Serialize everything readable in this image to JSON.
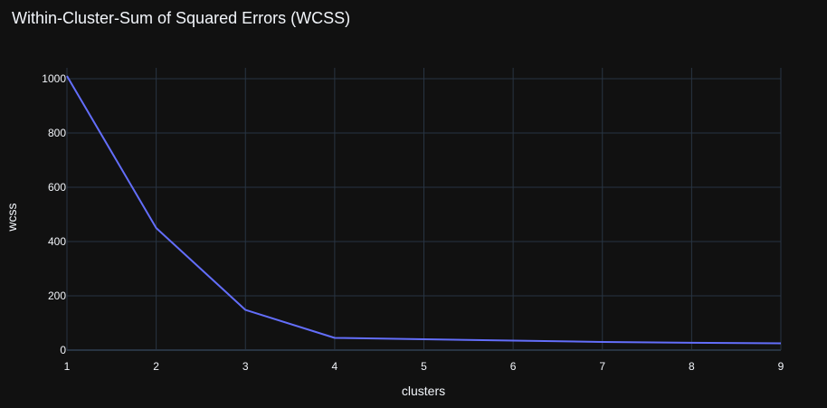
{
  "chart_data": {
    "type": "line",
    "title": "Within-Cluster-Sum of Squared Errors (WCSS)",
    "xlabel": "clusters",
    "ylabel": "wcss",
    "x": [
      1,
      2,
      3,
      4,
      5,
      6,
      7,
      8,
      9
    ],
    "series": [
      {
        "values": [
          1010,
          450,
          148,
          45,
          40,
          35,
          30,
          27,
          25
        ],
        "color": "#636efa"
      }
    ],
    "xlim": [
      1,
      9
    ],
    "ylim": [
      0,
      1040
    ],
    "xticks": [
      1,
      2,
      3,
      4,
      5,
      6,
      7,
      8,
      9
    ],
    "yticks": [
      0,
      200,
      400,
      600,
      800,
      1000
    ],
    "grid": true,
    "theme": {
      "background": "#111111",
      "grid_color": "#283442",
      "text_color": "#f2f5fa"
    }
  }
}
